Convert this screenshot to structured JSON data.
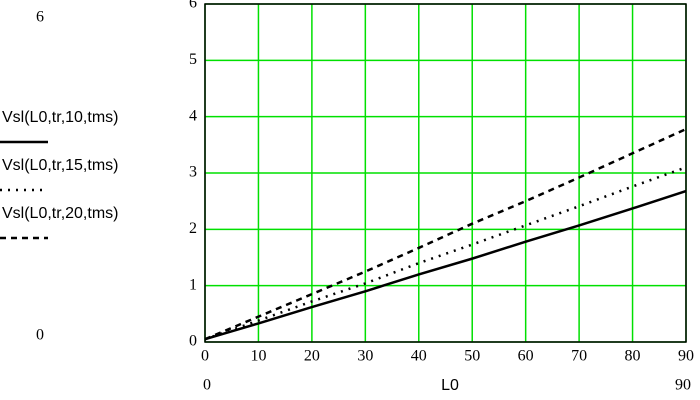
{
  "chart_data": {
    "type": "line",
    "x_label": "L0",
    "x": [
      0,
      10,
      20,
      30,
      40,
      50,
      60,
      70,
      80,
      90
    ],
    "series": [
      {
        "name": "Vsl(L0,tr,10,tms)",
        "color": "#000000",
        "line_style": "solid",
        "values": [
          0.05,
          0.33,
          0.62,
          0.9,
          1.2,
          1.48,
          1.78,
          2.07,
          2.37,
          2.68
        ]
      },
      {
        "name": "Vsl(L0,tr,15,tms)",
        "color": "#000000",
        "line_style": "dotted",
        "values": [
          0.05,
          0.38,
          0.72,
          1.04,
          1.4,
          1.73,
          2.07,
          2.41,
          2.76,
          3.1
        ]
      },
      {
        "name": "Vsl(L0,tr,20,tms)",
        "color": "#000000",
        "line_style": "dashed",
        "values": [
          0.05,
          0.45,
          0.85,
          1.25,
          1.67,
          2.1,
          2.5,
          2.92,
          3.35,
          3.78
        ]
      }
    ],
    "xlim": [
      0,
      90
    ],
    "ylim": [
      0,
      6
    ],
    "xticks": [
      0,
      10,
      20,
      30,
      40,
      50,
      60,
      70,
      80,
      90
    ],
    "yticks": [
      0,
      1,
      2,
      3,
      4,
      5,
      6
    ],
    "grid": true,
    "grid_color": "#00e000",
    "legend": "left"
  }
}
